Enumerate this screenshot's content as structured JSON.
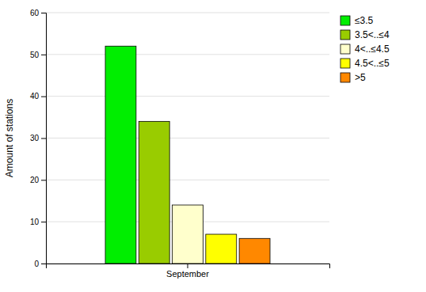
{
  "chart_data": {
    "type": "bar",
    "categories": [
      "September"
    ],
    "series": [
      {
        "name": "≤3.5",
        "color": "#00ee00",
        "values": [
          52
        ]
      },
      {
        "name": "3.5<..≤4",
        "color": "#99cc00",
        "values": [
          34
        ]
      },
      {
        "name": "4<..≤4.5",
        "color": "#ffffcc",
        "values": [
          14
        ]
      },
      {
        "name": "4.5<..≤5",
        "color": "#ffff00",
        "values": [
          7
        ]
      },
      {
        "name": ">5",
        "color": "#ff8800",
        "values": [
          6
        ]
      }
    ],
    "ylabel": "Amount of stations",
    "ylim": [
      0,
      60
    ],
    "yticks": [
      0,
      10,
      20,
      30,
      40,
      50,
      60
    ],
    "grid": true,
    "legend": "upper right"
  }
}
